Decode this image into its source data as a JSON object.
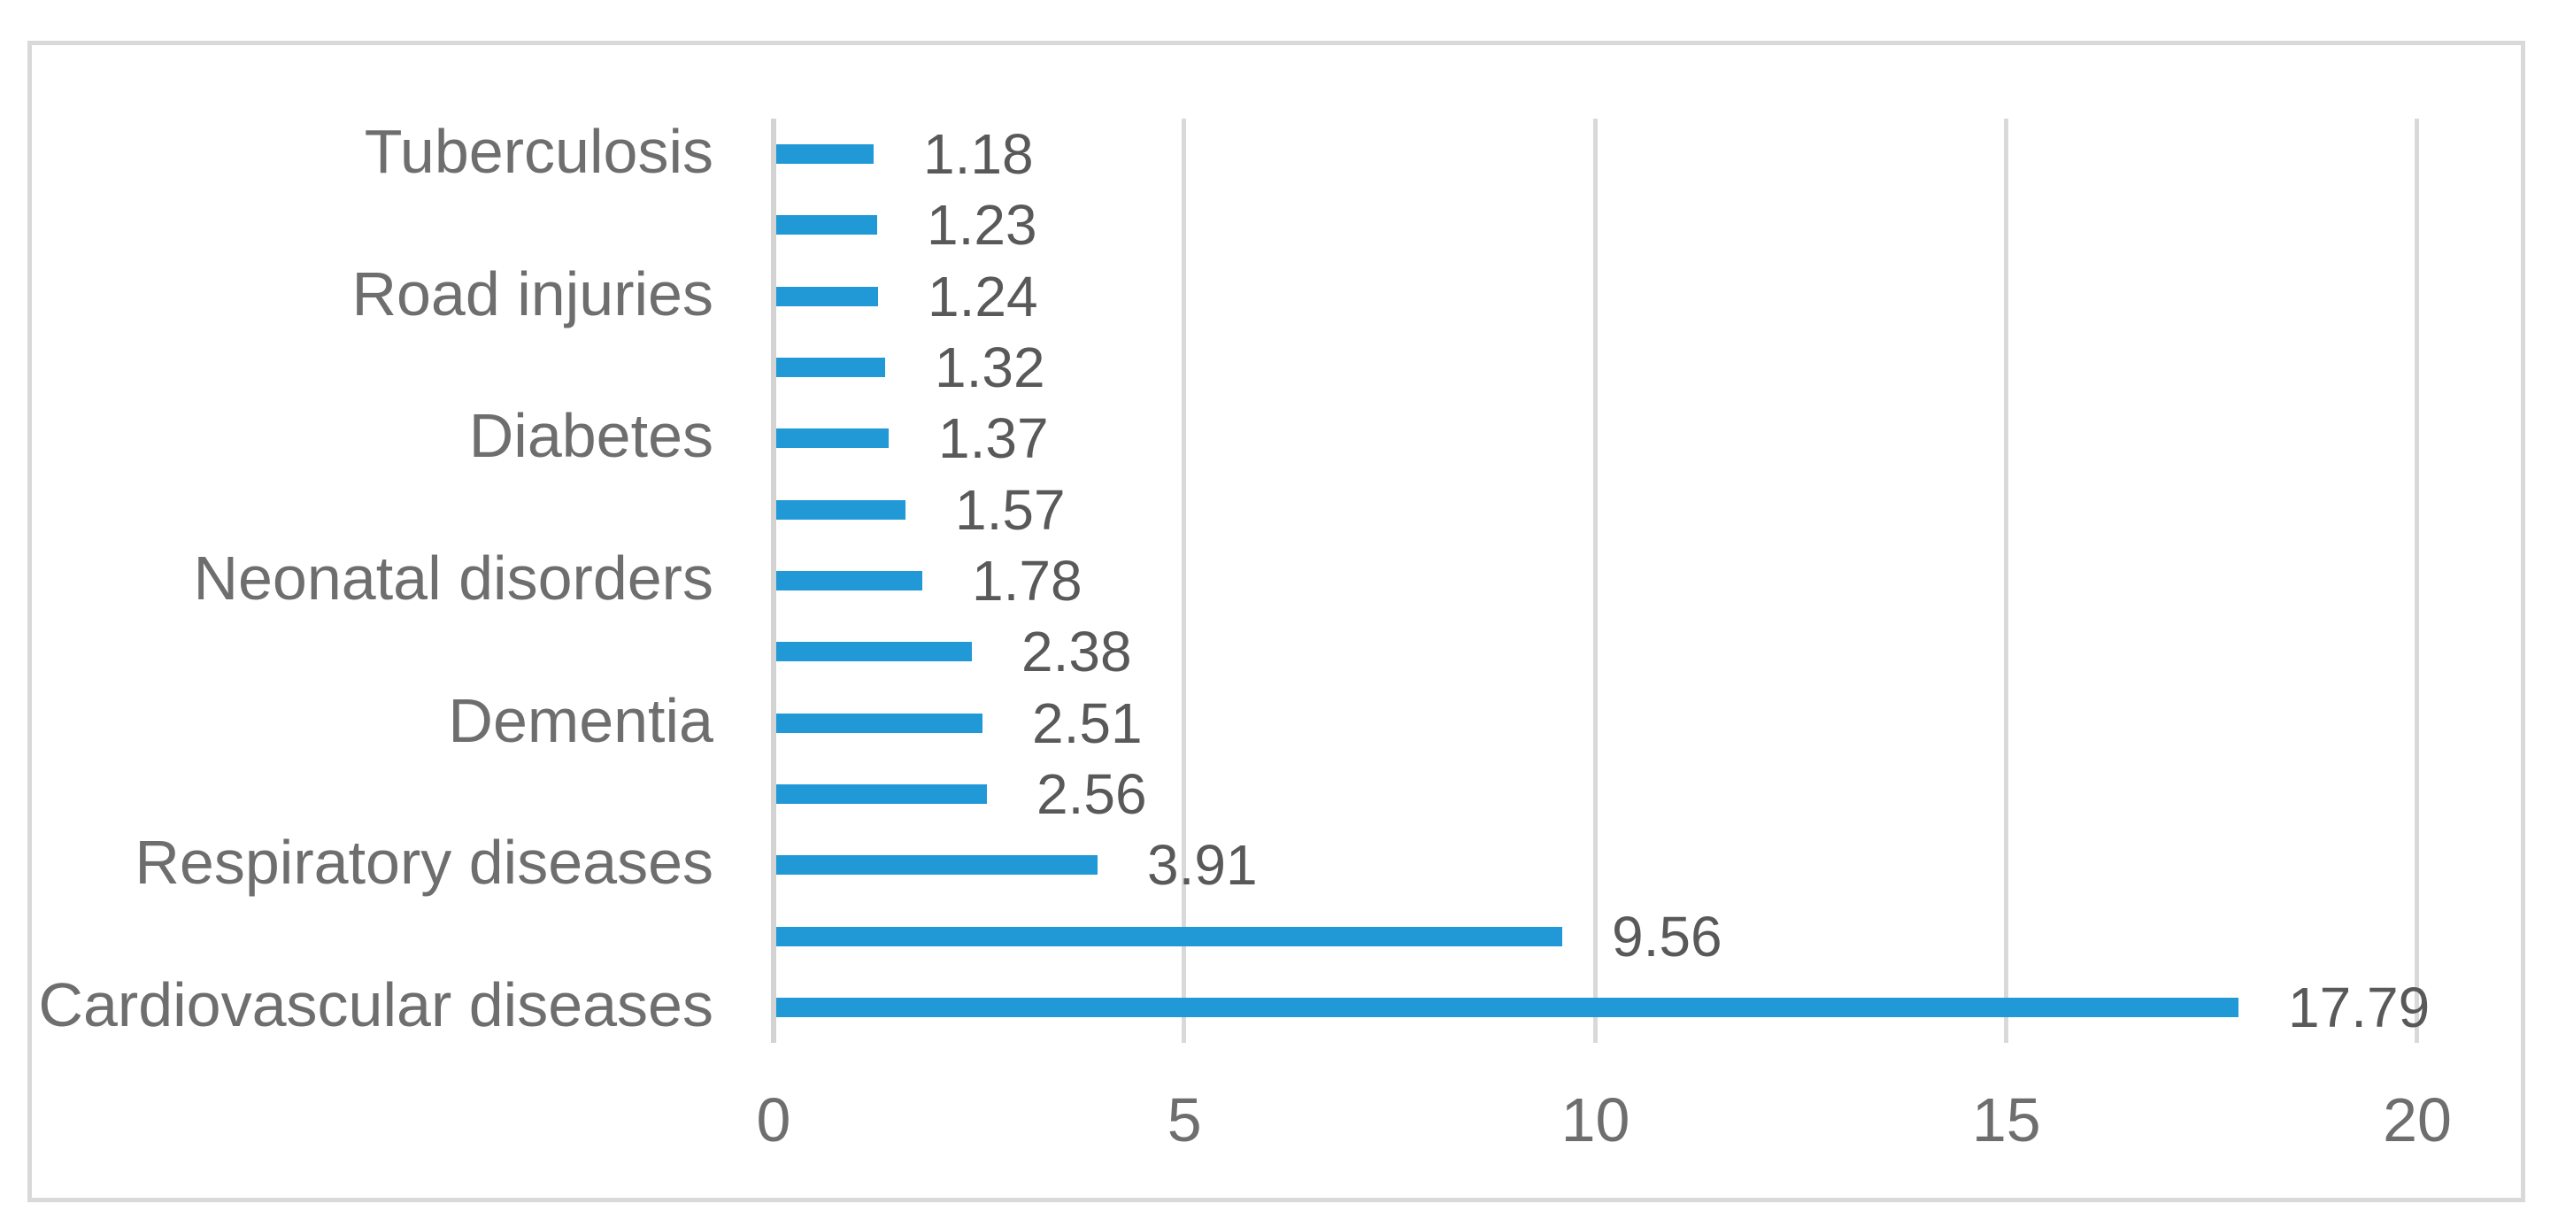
{
  "chart_data": {
    "type": "bar",
    "orientation": "horizontal",
    "title": "",
    "xlabel": "",
    "ylabel": "",
    "xlim": [
      0,
      20
    ],
    "x_ticks": [
      "0",
      "5",
      "10",
      "15",
      "20"
    ],
    "x_tick_values": [
      0,
      5,
      10,
      15,
      20
    ],
    "grid": true,
    "legend": false,
    "data_labels_shown": true,
    "items": [
      {
        "label": "Tuberculosis",
        "value": 1.18,
        "display": "1.18"
      },
      {
        "label": "",
        "value": 1.23,
        "display": "1.23"
      },
      {
        "label": "Road injuries",
        "value": 1.24,
        "display": "1.24"
      },
      {
        "label": "",
        "value": 1.32,
        "display": "1.32"
      },
      {
        "label": "Diabetes",
        "value": 1.37,
        "display": "1.37"
      },
      {
        "label": "",
        "value": 1.57,
        "display": "1.57"
      },
      {
        "label": "Neonatal disorders",
        "value": 1.78,
        "display": "1.78"
      },
      {
        "label": "",
        "value": 2.38,
        "display": "2.38"
      },
      {
        "label": "Dementia",
        "value": 2.51,
        "display": "2.51"
      },
      {
        "label": "",
        "value": 2.56,
        "display": "2.56"
      },
      {
        "label": "Respiratory diseases",
        "value": 3.91,
        "display": "3.91"
      },
      {
        "label": "",
        "value": 9.56,
        "display": "9.56"
      },
      {
        "label": "Cardiovascular diseases",
        "value": 17.79,
        "display": "17.79"
      }
    ],
    "colors": {
      "bar": "#2099D6",
      "value_text": "#595959",
      "category_text": "#6E6E6E",
      "tick_text": "#6E6E6E",
      "gridline": "#D9D9D9",
      "axis_line": "#D3D3D3",
      "frame_border": "#D9D9D9",
      "background": "#FFFFFF"
    }
  }
}
